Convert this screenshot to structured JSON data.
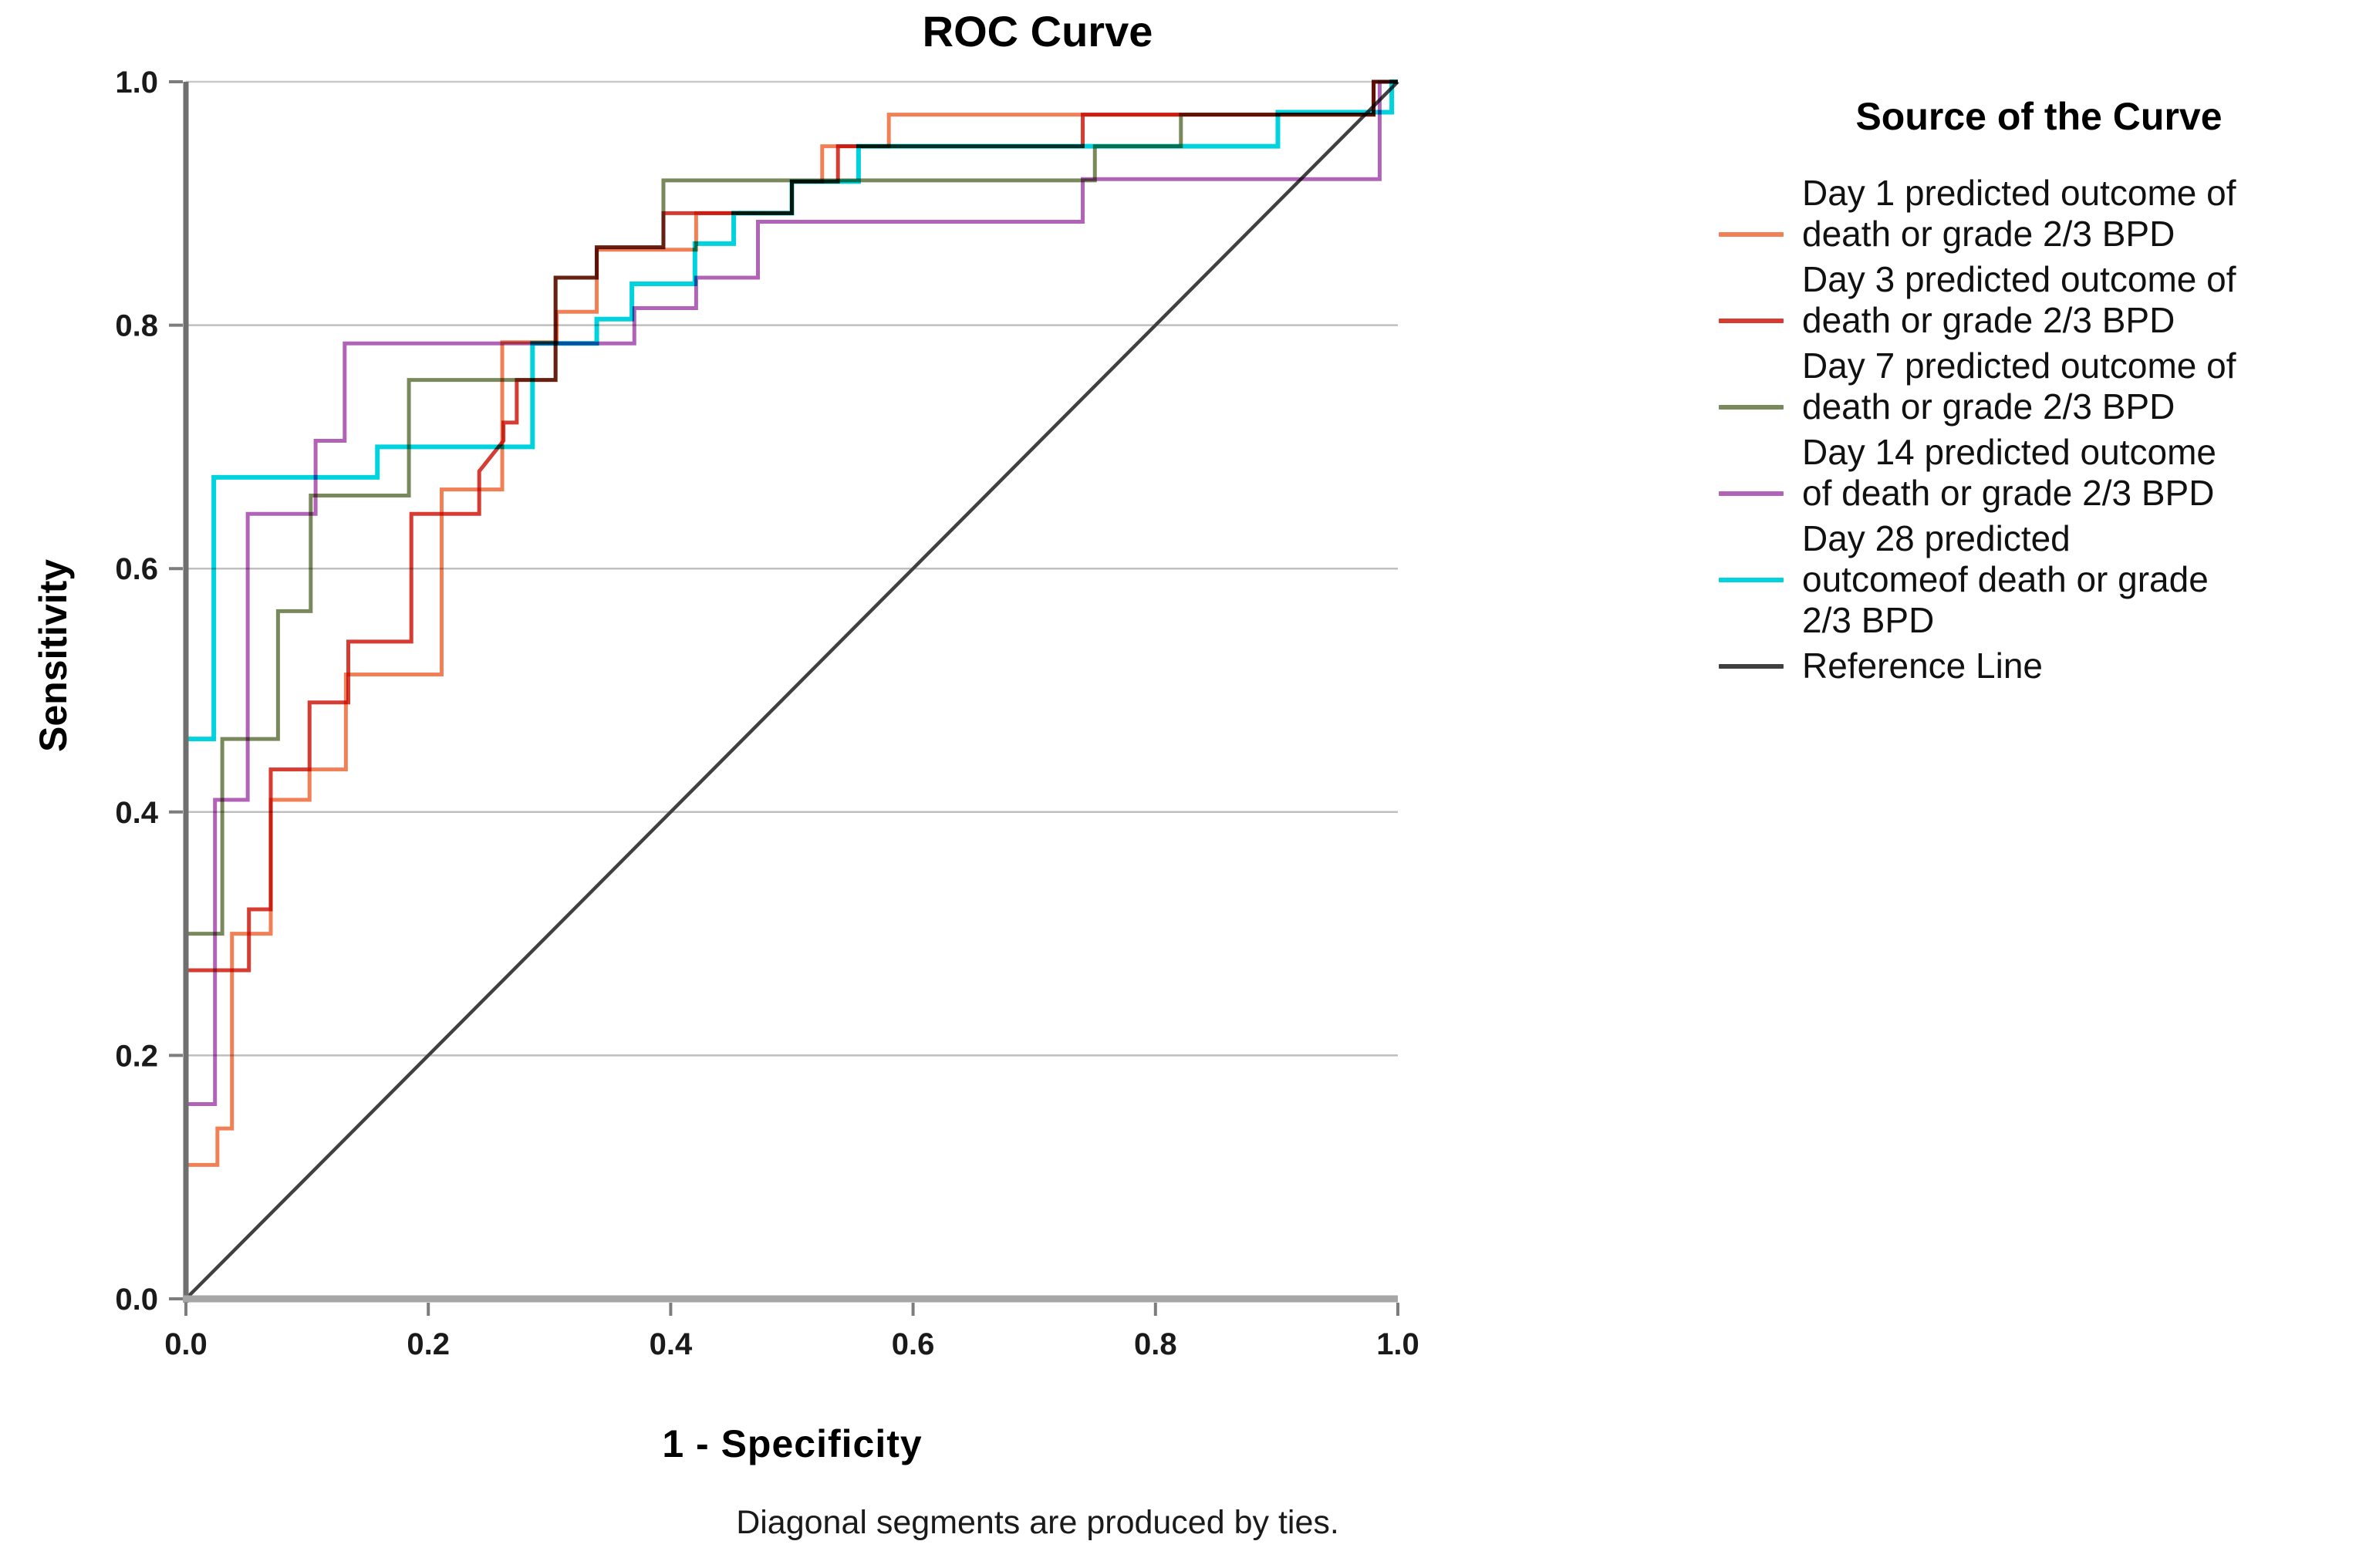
{
  "title": "ROC Curve",
  "axes": {
    "x_label": "1 - Specificity",
    "y_label": "Sensitivity",
    "x_ticks": [
      "0.0",
      "0.2",
      "0.4",
      "0.6",
      "0.8",
      "1.0"
    ],
    "y_ticks": [
      "0.0",
      "0.2",
      "0.4",
      "0.6",
      "0.8",
      "1.0"
    ],
    "x_tick_values": [
      0,
      0.2,
      0.4,
      0.6,
      0.8,
      1.0
    ],
    "y_tick_values": [
      0,
      0.2,
      0.4,
      0.6,
      0.8,
      1.0
    ],
    "gridline_values": [
      0.2,
      0.4,
      0.6,
      0.8,
      1.0
    ]
  },
  "footer": "Diagonal segments are produced by ties.",
  "legend": {
    "title": "Source of the Curve",
    "entries": [
      {
        "key": "day1",
        "color": "#F28057",
        "lines": [
          "Day 1 predicted outcome of",
          "death or grade 2/3 BPD"
        ]
      },
      {
        "key": "day3",
        "color": "#D63C32",
        "lines": [
          "Day 3 predicted outcome of",
          "death or grade 2/3 BPD"
        ]
      },
      {
        "key": "day7",
        "color": "#79895C",
        "lines": [
          "Day 7 predicted outcome of",
          "death or grade 2/3 BPD"
        ]
      },
      {
        "key": "day14",
        "color": "#B163B8",
        "lines": [
          "Day 14 predicted outcome",
          "of death or grade 2/3 BPD"
        ]
      },
      {
        "key": "day28",
        "color": "#00D2DE",
        "lines": [
          "Day 28 predicted",
          "outcomeof death or grade",
          "2/3 BPD"
        ]
      },
      {
        "key": "reference",
        "color": "#404040",
        "lines": [
          "Reference Line"
        ]
      }
    ]
  },
  "chart_data": {
    "type": "line",
    "subtype": "roc-step-curves",
    "title": "ROC Curve",
    "xlabel": "1 - Specificity",
    "ylabel": "Sensitivity",
    "xlim": [
      0,
      1
    ],
    "ylim": [
      0,
      1
    ],
    "grid": "horizontal",
    "legend_position": "right",
    "series": [
      {
        "name": "Day 1 predicted outcome of death or grade 2/3 BPD",
        "key": "day1",
        "color": "#F28057",
        "width": 5,
        "points": [
          [
            0,
            0
          ],
          [
            0,
            0.11
          ],
          [
            0.026,
            0.11
          ],
          [
            0.026,
            0.14
          ],
          [
            0.038,
            0.14
          ],
          [
            0.038,
            0.3
          ],
          [
            0.07,
            0.3
          ],
          [
            0.07,
            0.41
          ],
          [
            0.102,
            0.41
          ],
          [
            0.102,
            0.435
          ],
          [
            0.132,
            0.435
          ],
          [
            0.132,
            0.513
          ],
          [
            0.211,
            0.513
          ],
          [
            0.211,
            0.665
          ],
          [
            0.261,
            0.665
          ],
          [
            0.261,
            0.786
          ],
          [
            0.306,
            0.786
          ],
          [
            0.306,
            0.811
          ],
          [
            0.339,
            0.811
          ],
          [
            0.339,
            0.862
          ],
          [
            0.421,
            0.862
          ],
          [
            0.421,
            0.892
          ],
          [
            0.5,
            0.892
          ],
          [
            0.5,
            0.918
          ],
          [
            0.525,
            0.918
          ],
          [
            0.525,
            0.947
          ],
          [
            0.58,
            0.947
          ],
          [
            0.58,
            0.973
          ],
          [
            0.98,
            0.973
          ],
          [
            0.98,
            1
          ],
          [
            1,
            1
          ]
        ]
      },
      {
        "name": "Day 3 predicted outcome of death or grade 2/3 BPD",
        "key": "day3",
        "color": "#D63C32",
        "width": 5,
        "points": [
          [
            0,
            0
          ],
          [
            0,
            0.27
          ],
          [
            0.052,
            0.27
          ],
          [
            0.052,
            0.32
          ],
          [
            0.07,
            0.32
          ],
          [
            0.07,
            0.435
          ],
          [
            0.102,
            0.435
          ],
          [
            0.102,
            0.49
          ],
          [
            0.134,
            0.49
          ],
          [
            0.134,
            0.54
          ],
          [
            0.186,
            0.54
          ],
          [
            0.186,
            0.645
          ],
          [
            0.242,
            0.645
          ],
          [
            0.242,
            0.68
          ],
          [
            0.262,
            0.705
          ],
          [
            0.262,
            0.72
          ],
          [
            0.273,
            0.72
          ],
          [
            0.273,
            0.755
          ],
          [
            0.305,
            0.755
          ],
          [
            0.305,
            0.839
          ],
          [
            0.339,
            0.839
          ],
          [
            0.339,
            0.864
          ],
          [
            0.394,
            0.864
          ],
          [
            0.394,
            0.892
          ],
          [
            0.5,
            0.892
          ],
          [
            0.5,
            0.918
          ],
          [
            0.538,
            0.918
          ],
          [
            0.538,
            0.947
          ],
          [
            0.74,
            0.947
          ],
          [
            0.74,
            0.973
          ],
          [
            0.98,
            0.973
          ],
          [
            0.98,
            1
          ],
          [
            1,
            1
          ]
        ]
      },
      {
        "name": "Day 7 predicted outcome of death or grade 2/3 BPD",
        "key": "day7",
        "color": "#79895C",
        "width": 5,
        "points": [
          [
            0,
            0
          ],
          [
            0,
            0.3
          ],
          [
            0.03,
            0.3
          ],
          [
            0.03,
            0.46
          ],
          [
            0.076,
            0.46
          ],
          [
            0.076,
            0.565
          ],
          [
            0.103,
            0.565
          ],
          [
            0.103,
            0.66
          ],
          [
            0.184,
            0.66
          ],
          [
            0.184,
            0.755
          ],
          [
            0.305,
            0.755
          ],
          [
            0.305,
            0.839
          ],
          [
            0.339,
            0.839
          ],
          [
            0.339,
            0.864
          ],
          [
            0.394,
            0.864
          ],
          [
            0.394,
            0.919
          ],
          [
            0.75,
            0.919
          ],
          [
            0.75,
            0.947
          ],
          [
            0.821,
            0.947
          ],
          [
            0.821,
            0.973
          ],
          [
            0.98,
            0.973
          ],
          [
            0.98,
            1
          ],
          [
            1,
            1
          ]
        ]
      },
      {
        "name": "Day 14 predicted outcome of death or grade 2/3 BPD",
        "key": "day14",
        "color": "#B163B8",
        "width": 5,
        "points": [
          [
            0,
            0
          ],
          [
            0,
            0.16
          ],
          [
            0.024,
            0.16
          ],
          [
            0.024,
            0.41
          ],
          [
            0.051,
            0.41
          ],
          [
            0.051,
            0.645
          ],
          [
            0.107,
            0.645
          ],
          [
            0.107,
            0.705
          ],
          [
            0.131,
            0.705
          ],
          [
            0.131,
            0.785
          ],
          [
            0.37,
            0.785
          ],
          [
            0.37,
            0.814
          ],
          [
            0.421,
            0.814
          ],
          [
            0.421,
            0.839
          ],
          [
            0.472,
            0.839
          ],
          [
            0.472,
            0.885
          ],
          [
            0.74,
            0.885
          ],
          [
            0.74,
            0.92
          ],
          [
            0.985,
            0.92
          ],
          [
            0.985,
            1
          ],
          [
            1,
            1
          ]
        ]
      },
      {
        "name": "Day 28 predicted outcomeof death or grade 2/3 BPD",
        "key": "day28",
        "color": "#00D2DE",
        "width": 6,
        "points": [
          [
            0,
            0
          ],
          [
            0,
            0.46
          ],
          [
            0.023,
            0.46
          ],
          [
            0.023,
            0.675
          ],
          [
            0.158,
            0.675
          ],
          [
            0.158,
            0.7
          ],
          [
            0.286,
            0.7
          ],
          [
            0.286,
            0.785
          ],
          [
            0.339,
            0.785
          ],
          [
            0.339,
            0.805
          ],
          [
            0.368,
            0.805
          ],
          [
            0.368,
            0.834
          ],
          [
            0.42,
            0.834
          ],
          [
            0.42,
            0.867
          ],
          [
            0.452,
            0.867
          ],
          [
            0.452,
            0.892
          ],
          [
            0.5,
            0.892
          ],
          [
            0.5,
            0.918
          ],
          [
            0.555,
            0.918
          ],
          [
            0.555,
            0.947
          ],
          [
            0.901,
            0.947
          ],
          [
            0.901,
            0.975
          ],
          [
            0.995,
            0.975
          ],
          [
            0.995,
            1
          ],
          [
            1,
            1
          ]
        ]
      }
    ],
    "reference_line": {
      "name": "Reference Line",
      "key": "reference",
      "color": "#404040",
      "width": 4.5,
      "points": [
        [
          0,
          0
        ],
        [
          1,
          1
        ]
      ]
    }
  }
}
